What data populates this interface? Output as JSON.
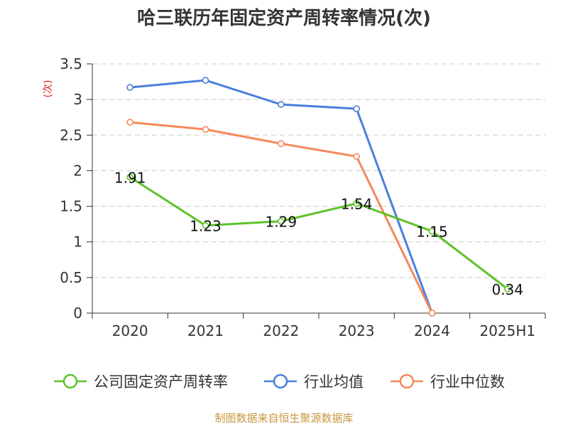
{
  "chart_data": {
    "type": "line",
    "title": "哈三联历年固定资产周转率情况(次)",
    "unit_label": "(次)",
    "categories": [
      "2020",
      "2021",
      "2022",
      "2023",
      "2024",
      "2025H1"
    ],
    "ylim": [
      0,
      3.5
    ],
    "yticks": [
      "0",
      "0.5",
      "1",
      "1.5",
      "2",
      "2.5",
      "3",
      "3.5"
    ],
    "grid": true,
    "legend_position": "bottom",
    "series": [
      {
        "name": "公司固定资产周转率",
        "color": "#5ec227",
        "values": [
          1.91,
          1.23,
          1.29,
          1.54,
          1.15,
          0.34
        ],
        "labels": [
          "1.91",
          "1.23",
          "1.29",
          "1.54",
          "1.15",
          "0.34"
        ]
      },
      {
        "name": "行业均值",
        "color": "#4a7fdc",
        "values": [
          3.17,
          3.27,
          2.93,
          2.87,
          0,
          null
        ]
      },
      {
        "name": "行业中位数",
        "color": "#f5885a",
        "values": [
          2.68,
          2.58,
          2.38,
          2.2,
          0,
          null
        ]
      }
    ]
  },
  "source": "制图数据来自恒生聚源数据库"
}
